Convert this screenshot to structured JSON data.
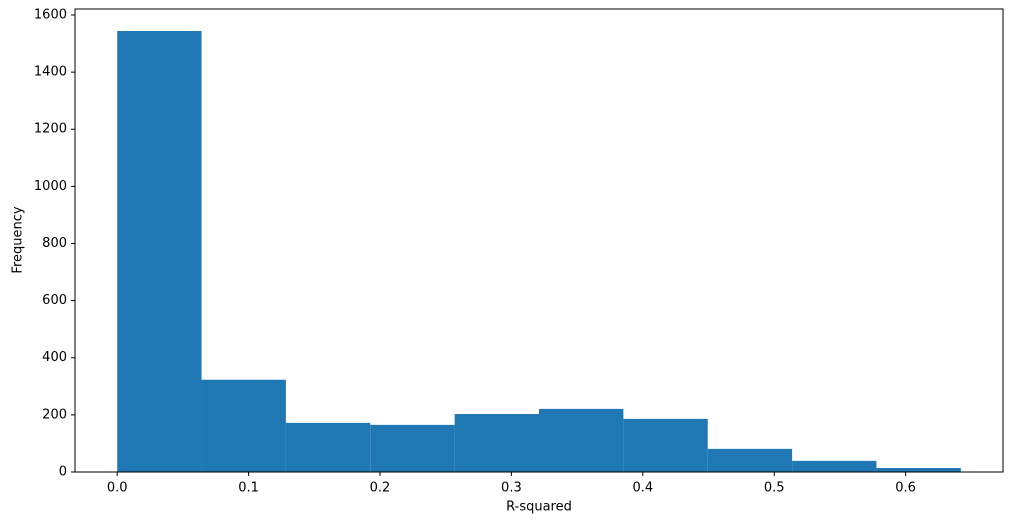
{
  "chart_data": {
    "type": "histogram",
    "x_label": "R-squared",
    "y_label": "Frequency",
    "bins": [
      0,
      0.0642,
      0.1284,
      0.1926,
      0.2568,
      0.321,
      0.3852,
      0.4494,
      0.5136,
      0.5778,
      0.642
    ],
    "values": [
      1544,
      323,
      172,
      165,
      203,
      221,
      186,
      81,
      39,
      14
    ],
    "color": "#1f77b4",
    "xlim": [
      -0.0321,
      0.6741
    ],
    "xticks": [
      {
        "value": 0,
        "label": "0.0"
      },
      0.1,
      0.2,
      0.3,
      0.4,
      0.5,
      0.6
    ],
    "ylim": [
      0,
      1621
    ],
    "yticks": [
      0,
      200,
      400,
      600,
      800,
      1000,
      1200,
      1400,
      1600
    ]
  }
}
